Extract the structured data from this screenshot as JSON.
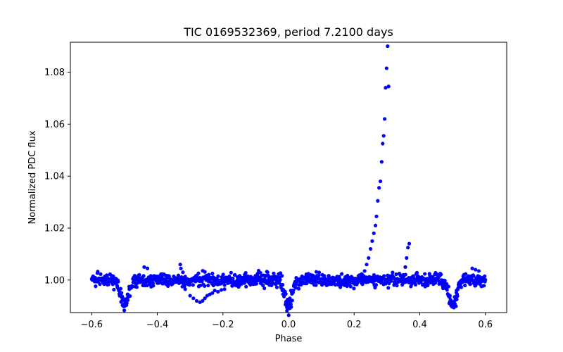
{
  "chart_data": {
    "type": "scatter",
    "title": "TIC 0169532369, period 7.2100 days",
    "xlabel": "Phase",
    "ylabel": "Normalized PDC flux",
    "xlim": [
      -0.665,
      0.665
    ],
    "ylim": [
      0.9875,
      1.0915
    ],
    "xticks": [
      -0.6,
      -0.4,
      -0.2,
      0.0,
      0.2,
      0.4,
      0.6
    ],
    "xtick_labels": [
      "−0.6",
      "−0.4",
      "−0.2",
      "0.0",
      "0.2",
      "0.4",
      "0.6"
    ],
    "yticks": [
      1.0,
      1.02,
      1.04,
      1.06,
      1.08
    ],
    "ytick_labels": [
      "1.00",
      "1.02",
      "1.04",
      "1.06",
      "1.08"
    ],
    "marker_color": "#0000ff",
    "series": [
      {
        "name": "flux",
        "dips": [
          {
            "phase": -0.5,
            "depth": 0.0098,
            "width": 0.012
          },
          {
            "phase": 0.0,
            "depth": 0.0105,
            "width": 0.01
          },
          {
            "phase": 0.5,
            "depth": 0.0098,
            "width": 0.012
          }
        ],
        "x": [
          0.205,
          0.215,
          0.225,
          0.232,
          0.238,
          0.244,
          0.25,
          0.255,
          0.26,
          0.265,
          0.268,
          0.272,
          0.276,
          0.28,
          0.284,
          0.287,
          0.29,
          0.293,
          0.296,
          0.299,
          0.302,
          0.305,
          0.35,
          0.356,
          0.36,
          0.364,
          0.368,
          -0.512,
          -0.508,
          -0.503,
          -0.499,
          -0.495,
          -0.49,
          -0.486,
          -0.008,
          -0.005,
          -0.002,
          0.001,
          0.004,
          0.007,
          0.488,
          0.492,
          0.496,
          0.5,
          0.504,
          0.508,
          0.512,
          -0.33,
          -0.322,
          -0.315,
          -0.3,
          -0.29,
          -0.28,
          -0.27,
          -0.262,
          -0.255,
          -0.248,
          -0.24,
          -0.232,
          -0.225,
          -0.215,
          -0.205,
          -0.195,
          -0.44,
          -0.43,
          0.56,
          0.57,
          0.58
        ],
        "y": [
          1.0005,
          1.001,
          1.002,
          1.0035,
          1.006,
          1.0085,
          1.012,
          1.015,
          1.018,
          1.021,
          1.0245,
          1.0305,
          1.0355,
          1.038,
          1.0455,
          1.0525,
          1.0555,
          1.062,
          1.074,
          1.0815,
          1.09,
          1.0745,
          1.002,
          1.005,
          1.0085,
          1.0125,
          1.014,
          0.9945,
          0.992,
          0.9905,
          0.99,
          0.9915,
          0.9945,
          0.9975,
          0.9915,
          0.9895,
          0.989,
          0.9905,
          0.993,
          0.996,
          0.9975,
          0.994,
          0.991,
          0.99,
          0.9915,
          0.9935,
          0.996,
          1.006,
          1.003,
          0.9965,
          0.994,
          0.993,
          0.992,
          0.9915,
          0.992,
          0.993,
          0.994,
          0.9945,
          0.995,
          0.996,
          0.9955,
          0.9962,
          0.9965,
          1.005,
          1.0045,
          1.0045,
          1.004,
          1.0035
        ]
      }
    ]
  }
}
